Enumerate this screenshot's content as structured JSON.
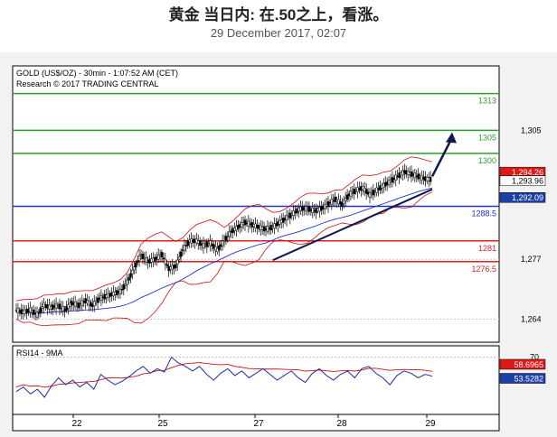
{
  "header": {
    "title": "黄金 当日内: 在.50之上，看涨。",
    "subtitle": "29 December 2017, 02:07"
  },
  "chart_data": {
    "type": "candlestick",
    "instrument_label": "GOLD (US$/OZ) - 30min - 1:07:52 AM (CET)",
    "copyright": "Research © 2017 TRADING CENTRAL",
    "price_axis": {
      "ylim": [
        1259,
        1319
      ],
      "ticks": [
        1264,
        1277,
        1305
      ]
    },
    "x_ticks": [
      "22",
      "25",
      "27",
      "28",
      "29"
    ],
    "levels": [
      {
        "value": 1313,
        "label": "1313",
        "color": "#2e9e2e"
      },
      {
        "value": 1305,
        "label": "1305",
        "color": "#2e9e2e"
      },
      {
        "value": 1300,
        "label": "1300",
        "color": "#2e9e2e"
      },
      {
        "value": 1288.5,
        "label": "1288.5",
        "color": "#2233cc"
      },
      {
        "value": 1281,
        "label": "1281",
        "color": "#dd2222"
      },
      {
        "value": 1276.5,
        "label": "1276.5",
        "color": "#dd2222"
      }
    ],
    "price_badges": [
      {
        "value": 1294.26,
        "label": "1,294.26",
        "bg": "#e01818",
        "fg": "#ffffff"
      },
      {
        "value": 1293.96,
        "label": "1,293.96",
        "bg": "#ffffff",
        "fg": "#000000"
      },
      {
        "value": 1292.09,
        "label": "1,292.09",
        "bg": "#1d3fa8",
        "fg": "#ffffff"
      }
    ],
    "projection": {
      "from_value": 1295,
      "to_value": 1304.6
    },
    "close_series_approx": [
      1266,
      1265.5,
      1266,
      1265,
      1267,
      1266.5,
      1267,
      1266,
      1267.5,
      1267,
      1268,
      1267,
      1268.5,
      1269,
      1269.5,
      1270,
      1272,
      1275,
      1278,
      1276.5,
      1277,
      1278,
      1275,
      1275.5,
      1279,
      1281,
      1281,
      1280,
      1280.5,
      1279,
      1281,
      1283,
      1284,
      1285,
      1284.5,
      1284,
      1283.5,
      1284,
      1285,
      1286,
      1287,
      1288,
      1288,
      1287.5,
      1288,
      1289,
      1290,
      1289,
      1291,
      1292,
      1292.5,
      1291,
      1292,
      1293,
      1294,
      1295,
      1296,
      1295.5,
      1295,
      1294.5,
      1294.3
    ],
    "rsi": {
      "title": "RSI14 - 9MA",
      "level": 70,
      "level_label": "70",
      "ylim": [
        20,
        80
      ],
      "badges": [
        {
          "value": 58.6965,
          "label": "58.6965",
          "bg": "#e01818",
          "fg": "#ffffff"
        },
        {
          "value": 53.5282,
          "label": "53.5282",
          "bg": "#1d3fa8",
          "fg": "#ffffff"
        }
      ],
      "values_approx": [
        40,
        44,
        38,
        42,
        35,
        45,
        52,
        46,
        50,
        44,
        48,
        42,
        55,
        50,
        46,
        49,
        53,
        58,
        62,
        56,
        60,
        57,
        70,
        65,
        62,
        58,
        62,
        55,
        50,
        56,
        60,
        54,
        58,
        52,
        56,
        60,
        55,
        50,
        54,
        58,
        52,
        48,
        56,
        60,
        54,
        50,
        55,
        58,
        52,
        60,
        62,
        56,
        52,
        46,
        54,
        58,
        56,
        52,
        55,
        53.5
      ]
    }
  }
}
